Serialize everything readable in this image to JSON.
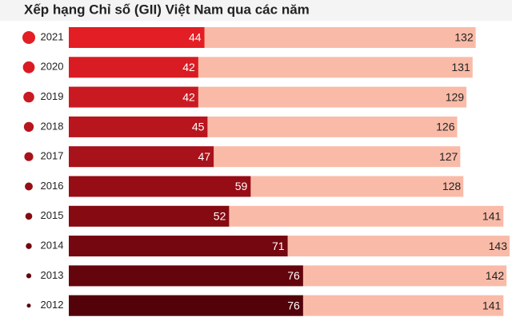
{
  "chart_data": {
    "type": "bar",
    "orientation": "horizontal",
    "overlap": true,
    "title": "Xếp hạng Chỉ số (GII) Việt Nam qua các năm",
    "categories": [
      "2021",
      "2020",
      "2019",
      "2018",
      "2017",
      "2016",
      "2015",
      "2014",
      "2013",
      "2012"
    ],
    "series": [
      {
        "colors": [
          "#e31e24",
          "#d91c23",
          "#c91a22",
          "#b8151e",
          "#a8121b",
          "#960d16",
          "#850a12",
          "#740710",
          "#64040c",
          "#54020a"
        ],
        "values": [
          44,
          42,
          42,
          45,
          47,
          59,
          52,
          71,
          76,
          76
        ]
      },
      {
        "color": "#f9bba8",
        "values": [
          132,
          131,
          129,
          126,
          127,
          128,
          141,
          143,
          142,
          141
        ]
      }
    ]
  }
}
